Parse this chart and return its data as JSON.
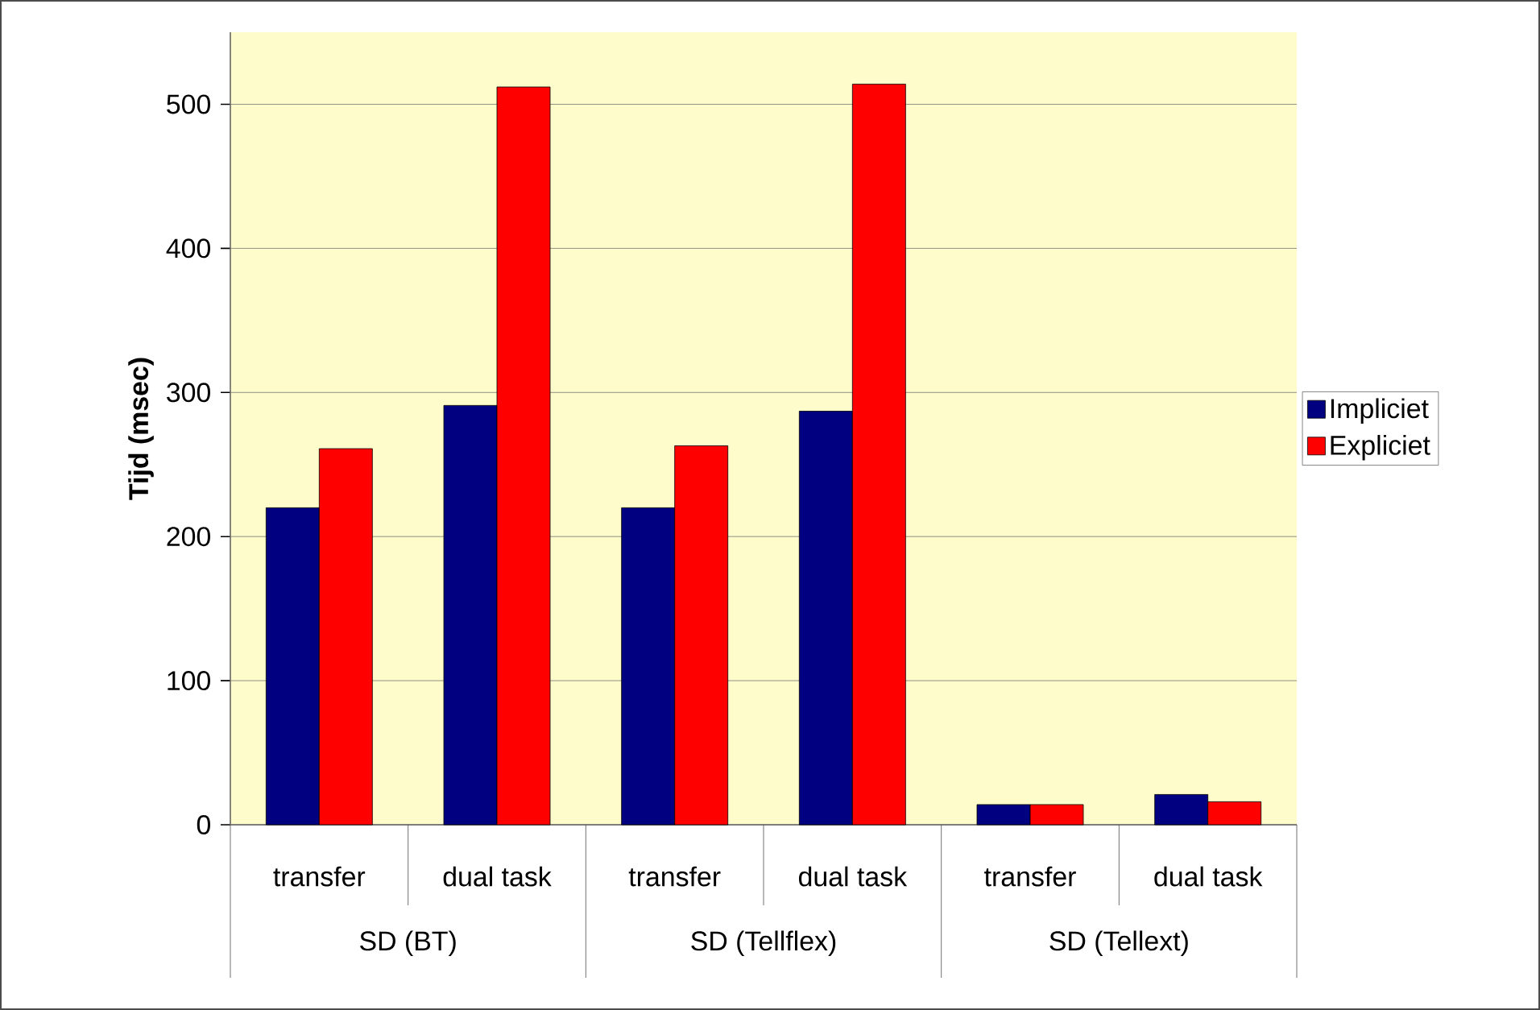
{
  "chart_data": {
    "type": "bar",
    "ylabel": "Tijd (msec)",
    "categories": [
      "transfer",
      "dual task",
      "transfer",
      "dual task",
      "transfer",
      "dual task"
    ],
    "annotations": [
      "SD (BT)",
      "SD (Tellflex)",
      "SD (Tellext)"
    ],
    "series": [
      {
        "name": "Impliciet",
        "color": "#000080",
        "values": [
          220,
          291,
          220,
          287,
          14,
          21
        ]
      },
      {
        "name": "Expliciet",
        "color": "#ff0000",
        "values": [
          261,
          512,
          263,
          514,
          14,
          16
        ]
      }
    ],
    "ylim": [
      0,
      550
    ],
    "yticks": [
      0,
      100,
      200,
      300,
      400,
      500
    ],
    "grid": "y",
    "legend": "right"
  }
}
